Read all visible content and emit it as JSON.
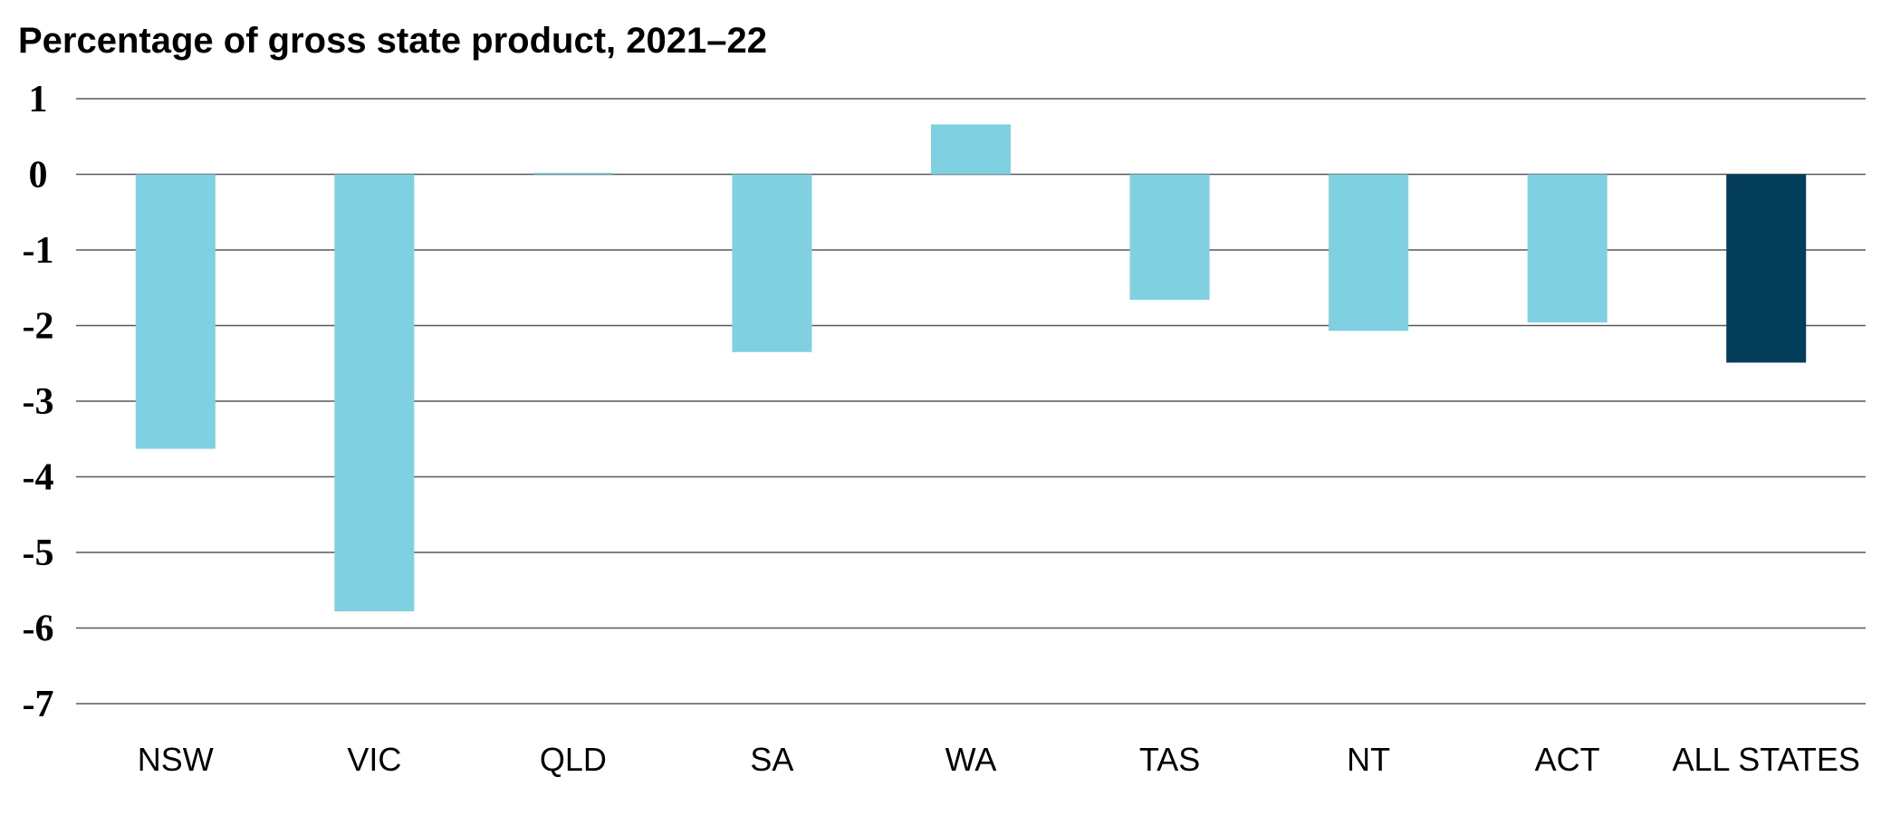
{
  "chart_data": {
    "type": "bar",
    "title": "Percentage of gross state product, 2021–22",
    "xlabel": "",
    "ylabel": "",
    "categories": [
      "NSW",
      "VIC",
      "QLD",
      "SA",
      "WA",
      "TAS",
      "NT",
      "ACT",
      "ALL STATES"
    ],
    "values": [
      -3.63,
      -5.78,
      0.02,
      -2.35,
      0.66,
      -1.66,
      -2.07,
      -1.96,
      -2.49
    ],
    "ylim": [
      -7,
      1
    ],
    "yticks": [
      1,
      0,
      -1,
      -2,
      -3,
      -4,
      -5,
      -6,
      -7
    ],
    "grid": true,
    "legend": "none",
    "colors": {
      "state_bar": "#7fd1e2",
      "total_bar": "#033d5a",
      "gridline": "#595959"
    },
    "highlight_category": "ALL STATES"
  }
}
